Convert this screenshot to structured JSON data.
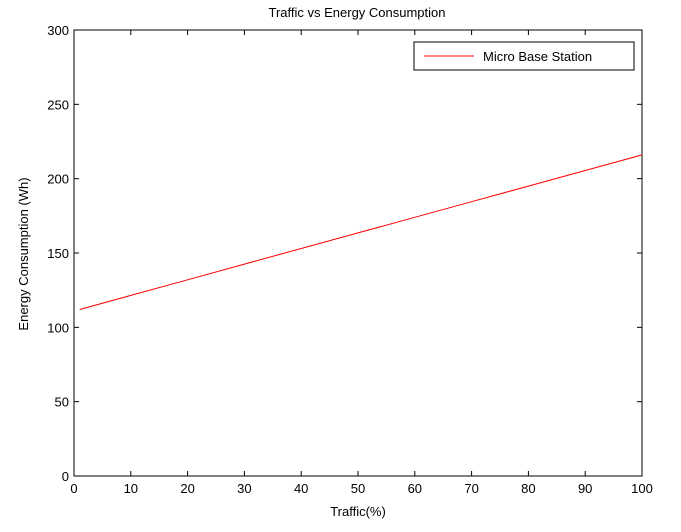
{
  "chart_data": {
    "type": "line",
    "title": "Traffic vs Energy Consumption",
    "xlabel": "Traffic(%)",
    "ylabel": "Energy Consumption (Wh)",
    "xlim": [
      0,
      100
    ],
    "ylim": [
      0,
      300
    ],
    "xticks": [
      0,
      10,
      20,
      30,
      40,
      50,
      60,
      70,
      80,
      90,
      100
    ],
    "yticks": [
      0,
      50,
      100,
      150,
      200,
      250,
      300
    ],
    "grid": false,
    "legend_position": "top-right",
    "series": [
      {
        "name": "Micro Base Station",
        "color": "#ff0000",
        "x": [
          1,
          10,
          20,
          30,
          40,
          50,
          60,
          70,
          80,
          90,
          100
        ],
        "y": [
          112,
          121.5,
          132,
          142.5,
          153,
          163.5,
          174,
          184.5,
          195,
          205.5,
          216
        ]
      }
    ]
  }
}
